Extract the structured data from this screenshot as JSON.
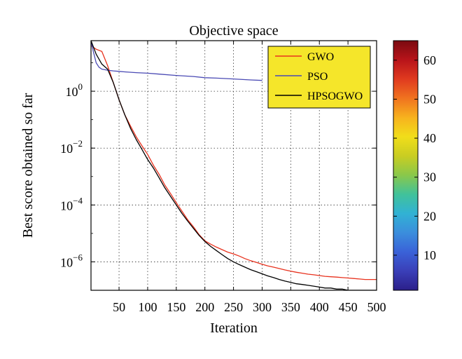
{
  "chart_data": {
    "type": "line",
    "title": "Objective space",
    "xlabel": "Iteration",
    "ylabel": "Best score obtained so far",
    "xlim": [
      1,
      500
    ],
    "ylim": [
      1e-07,
      60
    ],
    "yscale": "log",
    "grid": true,
    "legend_position": "top-right",
    "legend_background": "#f5e62a",
    "x_ticks": [
      50,
      100,
      150,
      200,
      250,
      300,
      350,
      400,
      450,
      500
    ],
    "x_tick_labels": [
      "50",
      "100",
      "150",
      "200",
      "250",
      "300",
      "350",
      "400",
      "450",
      "500"
    ],
    "y_ticks": [
      1,
      0.01,
      0.0001,
      1e-06
    ],
    "y_tick_labels": [
      {
        "base": "10",
        "exp": "0"
      },
      {
        "base": "10",
        "exp": "−2"
      },
      {
        "base": "10",
        "exp": "−4"
      },
      {
        "base": "10",
        "exp": "−6"
      }
    ],
    "series": [
      {
        "name": "GWO",
        "color": "#e8321e",
        "x": [
          1,
          10,
          20,
          30,
          40,
          50,
          60,
          70,
          80,
          90,
          100,
          110,
          120,
          130,
          140,
          150,
          160,
          170,
          180,
          190,
          200,
          210,
          220,
          230,
          240,
          250,
          260,
          270,
          280,
          290,
          300,
          310,
          320,
          330,
          340,
          350,
          360,
          370,
          380,
          390,
          400,
          410,
          420,
          430,
          440,
          450,
          460,
          470,
          480,
          490,
          500
        ],
        "y": [
          40,
          30,
          25,
          8,
          2,
          0.5,
          0.15,
          0.06,
          0.025,
          0.012,
          0.006,
          0.0025,
          0.0012,
          0.0005,
          0.00025,
          0.00012,
          6e-05,
          3e-05,
          1.7e-05,
          9e-06,
          5.5e-06,
          4.2e-06,
          3.3e-06,
          2.7e-06,
          2.2e-06,
          1.9e-06,
          1.6e-06,
          1.3e-06,
          1.1e-06,
          9.5e-07,
          8.2e-07,
          7.2e-07,
          6.5e-07,
          5.8e-07,
          5.2e-07,
          4.7e-07,
          4.3e-07,
          4e-07,
          3.7e-07,
          3.5e-07,
          3.3e-07,
          3.1e-07,
          3e-07,
          2.9e-07,
          2.8e-07,
          2.7e-07,
          2.6e-07,
          2.5e-07,
          2.4e-07,
          2.4e-07,
          2.4e-07
        ]
      },
      {
        "name": "PSO",
        "color": "#4a4ab4",
        "x": [
          1,
          5,
          10,
          15,
          20,
          30,
          40,
          50,
          60,
          80,
          100,
          120,
          150,
          180,
          200,
          220,
          250,
          280,
          300
        ],
        "y": [
          60,
          25,
          10,
          7,
          6,
          5.5,
          5.2,
          5.0,
          4.8,
          4.5,
          4.3,
          4.0,
          3.6,
          3.3,
          3.0,
          2.9,
          2.7,
          2.5,
          2.4
        ]
      },
      {
        "name": "HPSOGWO",
        "color": "#000000",
        "x": [
          1,
          10,
          20,
          30,
          40,
          50,
          60,
          70,
          80,
          90,
          100,
          110,
          120,
          130,
          140,
          150,
          160,
          170,
          180,
          190,
          200,
          210,
          220,
          230,
          240,
          250,
          260,
          270,
          280,
          290,
          300,
          310,
          320,
          330,
          340,
          350,
          360,
          370,
          380,
          390,
          400,
          410,
          420,
          430,
          440,
          450,
          460,
          470,
          480,
          490,
          500
        ],
        "y": [
          60,
          20,
          9,
          6,
          2,
          0.5,
          0.15,
          0.05,
          0.02,
          0.009,
          0.004,
          0.002,
          0.0009,
          0.0004,
          0.0002,
          0.0001,
          5e-05,
          2.7e-05,
          1.5e-05,
          8.5e-06,
          5.2e-06,
          3.5e-06,
          2.5e-06,
          1.8e-06,
          1.3e-06,
          1e-06,
          8e-07,
          6.5e-07,
          5.3e-07,
          4.5e-07,
          3.8e-07,
          3.2e-07,
          2.8e-07,
          2.4e-07,
          2.1e-07,
          1.9e-07,
          1.7e-07,
          1.6e-07,
          1.5e-07,
          1.4e-07,
          1.3e-07,
          1.2e-07,
          1.2e-07,
          1.1e-07,
          1.1e-07,
          1e-07,
          1e-07,
          1e-07,
          1e-07,
          1e-07,
          1e-07
        ]
      }
    ],
    "colorbar": {
      "min": 1,
      "max": 65,
      "ticks": [
        10,
        20,
        30,
        40,
        50,
        60
      ],
      "tick_labels": [
        "10",
        "20",
        "30",
        "40",
        "50",
        "60"
      ],
      "colors": [
        "#2b1f8a",
        "#3a3fb8",
        "#3a62d8",
        "#3b8edc",
        "#31b2d4",
        "#41c29a",
        "#8ac84a",
        "#c9cd22",
        "#f1de1a",
        "#f7b21e",
        "#f0731f",
        "#e03a1f",
        "#b8141a",
        "#7a0a10"
      ]
    }
  }
}
